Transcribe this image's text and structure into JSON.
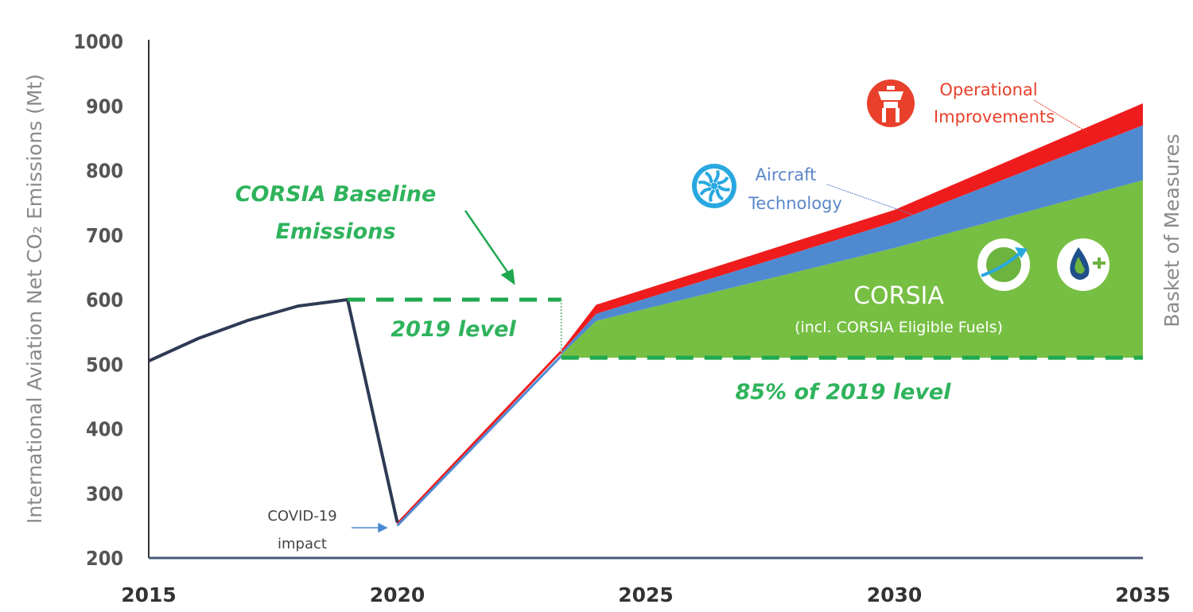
{
  "chart_data": {
    "type": "area",
    "ylabel": "International  Aviation Net CO₂ Emissions (Mt)",
    "right_label": "Basket of Measures",
    "xlim": [
      2015,
      2035
    ],
    "ylim": [
      200,
      1000
    ],
    "x_ticks": [
      "2015",
      "2020",
      "2025",
      "2030",
      "2035"
    ],
    "y_ticks": [
      "200",
      "300",
      "400",
      "500",
      "600",
      "700",
      "800",
      "900",
      "1000"
    ],
    "grid": false,
    "historical": {
      "x": [
        2015,
        2016,
        2017,
        2018,
        2019,
        2020
      ],
      "y": [
        505,
        540,
        568,
        590,
        600,
        255
      ],
      "color": "#2e3a55"
    },
    "projection_x": [
      2020,
      2023.3,
      2024,
      2030,
      2035
    ],
    "series": [
      {
        "name": "CORSIA",
        "top": [
          255,
          515,
          567,
          680,
          785
        ],
        "color": "#77bf43"
      },
      {
        "name": "Aircraft Technology",
        "top": [
          255,
          518,
          578,
          720,
          870
        ],
        "color": "#4f8ad1"
      },
      {
        "name": "Operational Improvements",
        "top": [
          255,
          522,
          592,
          739,
          904
        ],
        "color": "#ee1c1c"
      }
    ],
    "baseline_2019": {
      "value": 600,
      "x": [
        2019,
        2023.3
      ],
      "color": "#1fa84f"
    },
    "baseline_85": {
      "value": 510,
      "x": [
        2023.3,
        2035
      ],
      "color": "#1fa84f"
    },
    "annotations": {
      "baseline_title_1": "CORSIA Baseline",
      "baseline_title_2": "Emissions",
      "level_2019": "2019 level",
      "level_85": "85% of 2019 level",
      "corsia": "CORSIA",
      "corsia_sub": "(incl. CORSIA Eligible Fuels)",
      "aircraft_1": "Aircraft",
      "aircraft_2": "Technology",
      "operational_1": "Operational",
      "operational_2": "Improvements",
      "covid_1": "COVID-19",
      "covid_2": "impact"
    },
    "icons": [
      "control-tower-icon",
      "turbofan-icon",
      "corsia-globe-plane-icon",
      "sustainable-fuel-drop-icon"
    ]
  }
}
